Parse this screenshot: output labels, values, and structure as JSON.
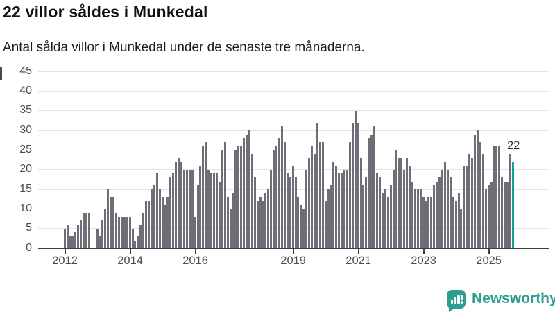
{
  "header": {
    "title": "22 villor såldes i Munkedal",
    "subtitle": "Antal sålda villor i Munkedal under de senaste tre månaderna."
  },
  "chart_data": {
    "type": "bar",
    "title": "22 villor såldes i Munkedal",
    "subtitle": "Antal sålda villor i Munkedal under de senaste tre månaderna.",
    "x_start_month": "2012-01",
    "x_end_month": "2025-10",
    "values": [
      5,
      6,
      3,
      3,
      4,
      6,
      7,
      9,
      9,
      9,
      0,
      0,
      5,
      3,
      7,
      10,
      15,
      13,
      13,
      9,
      8,
      8,
      8,
      8,
      8,
      5,
      2,
      3,
      6,
      9,
      12,
      12,
      15,
      16,
      19,
      15,
      13,
      11,
      13,
      18,
      19,
      22,
      23,
      22,
      20,
      20,
      20,
      20,
      8,
      16,
      21,
      26,
      27,
      20,
      19,
      19,
      19,
      17,
      25,
      27,
      13,
      10,
      14,
      25,
      26,
      26,
      28,
      29,
      30,
      24,
      18,
      12,
      13,
      12,
      14,
      15,
      20,
      25,
      26,
      28,
      31,
      27,
      19,
      18,
      21,
      18,
      13,
      11,
      10,
      20,
      23,
      26,
      24,
      32,
      27,
      27,
      12,
      15,
      16,
      22,
      21,
      19,
      19,
      20,
      20,
      27,
      32,
      35,
      32,
      23,
      16,
      18,
      28,
      29,
      31,
      19,
      18,
      14,
      15,
      13,
      16,
      20,
      25,
      23,
      23,
      20,
      23,
      21,
      17,
      15,
      15,
      15,
      13,
      12,
      13,
      13,
      16,
      17,
      18,
      20,
      22,
      20,
      18,
      13,
      12,
      14,
      10,
      21,
      21,
      24,
      23,
      29,
      30,
      27,
      24,
      15,
      16,
      17,
      26,
      26,
      26,
      18,
      17,
      17,
      24,
      22
    ],
    "highlight_last_bar": true,
    "highlight_value_label": "22",
    "ylim": [
      0,
      45
    ],
    "yticks": [
      0,
      5,
      10,
      15,
      20,
      25,
      30,
      35,
      40,
      45
    ],
    "xticks": [
      {
        "label": "2012",
        "month_index": 0
      },
      {
        "label": "2014",
        "month_index": 24
      },
      {
        "label": "2016",
        "month_index": 48
      },
      {
        "label": "2019",
        "month_index": 84
      },
      {
        "label": "2021",
        "month_index": 108
      },
      {
        "label": "2023",
        "month_index": 132
      },
      {
        "label": "2025",
        "month_index": 156
      }
    ],
    "grid": true,
    "legend": "none",
    "bar_color": "#6e6e76",
    "highlight_color": "#14a094",
    "grid_color": "#e4e4e4",
    "axis_color": "#3e3e3e",
    "label_color": "#4c4c4c"
  },
  "annotation": {
    "last_value_label": "22"
  },
  "footer": {
    "brand": "Newsworthy",
    "brand_color": "#2d9d92"
  }
}
